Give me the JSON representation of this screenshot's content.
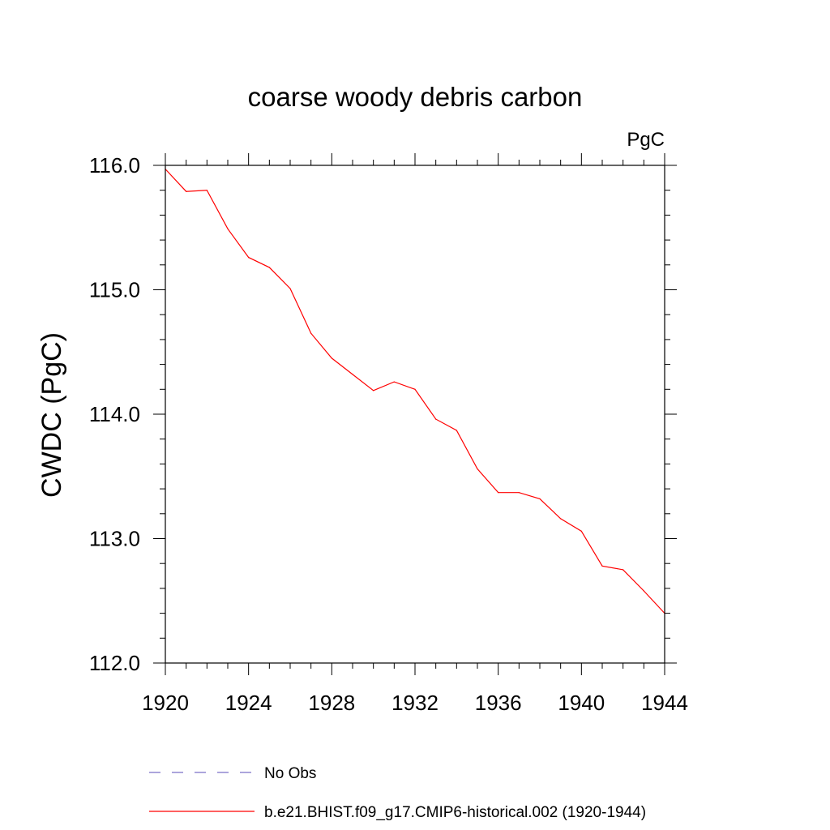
{
  "chart_data": {
    "type": "line",
    "title": "coarse woody debris carbon",
    "units": "PgC",
    "ylabel": "CWDC  (PgC)",
    "xlabel": "",
    "xlim": [
      1920,
      1944
    ],
    "ylim": [
      112.0,
      116.0
    ],
    "x_ticks": [
      1920,
      1924,
      1928,
      1932,
      1936,
      1940,
      1944
    ],
    "x_tick_labels": [
      "1920",
      "1924",
      "1928",
      "1932",
      "1936",
      "1940",
      "1944"
    ],
    "y_ticks": [
      112.0,
      113.0,
      114.0,
      115.0,
      116.0
    ],
    "y_tick_labels": [
      "112.0",
      "113.0",
      "114.0",
      "115.0",
      "116.0"
    ],
    "x_minor_step": 1,
    "y_minor_step": 0.2,
    "grid": false,
    "series": [
      {
        "name": "b.e21.BHIST.f09_g17.CMIP6-historical.002 (1920-1944)",
        "color": "#ff0000",
        "style": "solid",
        "x": [
          1920,
          1921,
          1922,
          1923,
          1924,
          1925,
          1926,
          1927,
          1928,
          1929,
          1930,
          1931,
          1932,
          1933,
          1934,
          1935,
          1936,
          1937,
          1938,
          1939,
          1940,
          1941,
          1942,
          1943,
          1944
        ],
        "y": [
          115.97,
          115.79,
          115.8,
          115.49,
          115.26,
          115.18,
          115.01,
          114.65,
          114.45,
          114.32,
          114.19,
          114.26,
          114.2,
          113.96,
          113.87,
          113.56,
          113.37,
          113.37,
          113.32,
          113.16,
          113.06,
          112.78,
          112.75,
          112.58,
          112.4
        ]
      }
    ],
    "legend": [
      {
        "label": "No Obs",
        "color": "#7b6fc6",
        "style": "dashed"
      },
      {
        "label": "b.e21.BHIST.f09_g17.CMIP6-historical.002 (1920-1944)",
        "color": "#ff0000",
        "style": "solid"
      }
    ],
    "legend_position": "bottom"
  }
}
